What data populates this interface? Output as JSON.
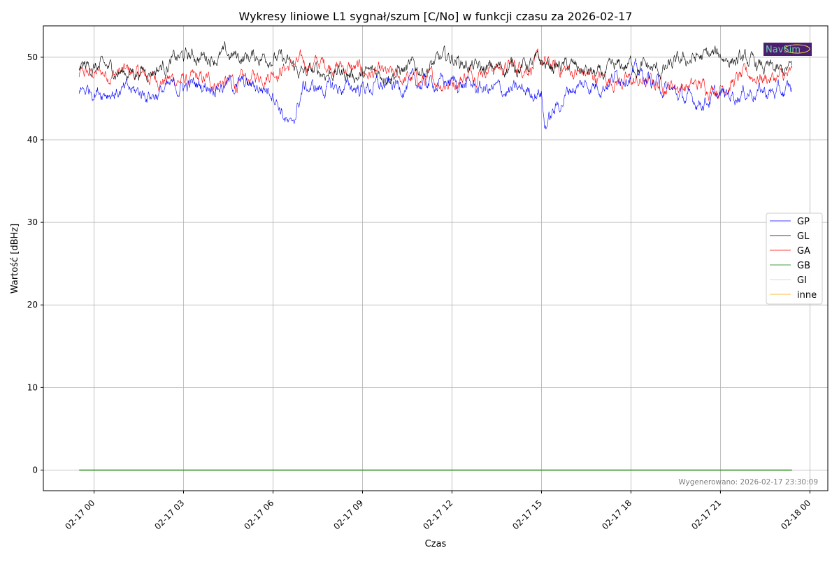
{
  "chart_data": {
    "type": "line",
    "title": "Wykresy liniowe L1 sygnał/szum [C/No] w funkcji czasu za 2026-02-17",
    "xlabel": "Czas",
    "ylabel": "Wartość [dBHz]",
    "ylim": [
      -2.5,
      53.8
    ],
    "xlim_hours_from_0217_00": [
      -1.7,
      24.6
    ],
    "yticks": [
      0,
      10,
      20,
      30,
      40,
      50
    ],
    "ytick_labels": [
      "0",
      "10",
      "20",
      "30",
      "40",
      "50"
    ],
    "xticks_hours": [
      0,
      3,
      6,
      9,
      12,
      15,
      18,
      21,
      24
    ],
    "xtick_labels": [
      "02-17 00",
      "02-17 03",
      "02-17 06",
      "02-17 09",
      "02-17 12",
      "02-17 15",
      "02-17 18",
      "02-17 21",
      "02-18 00"
    ],
    "grid": true,
    "legend_position": "center-right",
    "x_hours": [
      -0.5,
      0,
      1,
      2,
      3,
      4,
      5,
      6,
      6.6,
      7,
      8,
      9,
      10,
      11,
      12,
      13,
      14,
      15,
      15.1,
      16,
      17,
      18,
      19,
      20,
      21,
      22,
      23,
      23.4
    ],
    "series": [
      {
        "name": "GP",
        "color": "#0000ff",
        "values": [
          46,
          46.2,
          45.8,
          45.6,
          46.5,
          46.8,
          46.6,
          46.2,
          41,
          46.3,
          46.2,
          46.4,
          46.5,
          46.8,
          47,
          46.2,
          45.8,
          46,
          41.7,
          46.4,
          46.8,
          48.5,
          46.5,
          44.6,
          45.2,
          46,
          45.6,
          46
        ]
      },
      {
        "name": "GL",
        "color": "#000000",
        "values": [
          49,
          48.8,
          48.2,
          48.6,
          50,
          50.2,
          50,
          50.3,
          48.8,
          48,
          48.3,
          47.8,
          48.3,
          48.6,
          50,
          48.3,
          49,
          49.2,
          49,
          48.8,
          47.6,
          49.2,
          48.2,
          49.8,
          50.2,
          49.2,
          48,
          48.6
        ]
      },
      {
        "name": "GA",
        "color": "#ff0000",
        "values": [
          48,
          48,
          48.2,
          47.5,
          47.2,
          47,
          46.9,
          48.5,
          49,
          49.2,
          49.2,
          48.2,
          47.5,
          47.2,
          47,
          48.8,
          48.8,
          49.3,
          49,
          48.3,
          47.5,
          47,
          46.8,
          46.5,
          46.5,
          47.8,
          47.4,
          47.6
        ]
      },
      {
        "name": "GB",
        "color": "#008000",
        "values": [
          0,
          0,
          0,
          0,
          0,
          0,
          0,
          0,
          0,
          0,
          0,
          0,
          0,
          0,
          0,
          0,
          0,
          0,
          0,
          0,
          0,
          0,
          0,
          0,
          0,
          0,
          0,
          0
        ]
      },
      {
        "name": "GI",
        "color": "#add8e6",
        "values": [
          0,
          0,
          0,
          0,
          0,
          0,
          0,
          0,
          0,
          0,
          0,
          0,
          0,
          0,
          0,
          0,
          0,
          0,
          0,
          0,
          0,
          0,
          0,
          0,
          0,
          0,
          0,
          0
        ]
      },
      {
        "name": "inne",
        "color": "#ffa500",
        "values": [
          0,
          0,
          0,
          0,
          0,
          0,
          0,
          0,
          0,
          0,
          0,
          0,
          0,
          0,
          0,
          0,
          0,
          0,
          0,
          0,
          0,
          0,
          0,
          0,
          0,
          0,
          0,
          0
        ]
      }
    ],
    "annotation": "Wygenerowano: 2026-02-17 23:30:09",
    "logo_text": "NavSim"
  }
}
